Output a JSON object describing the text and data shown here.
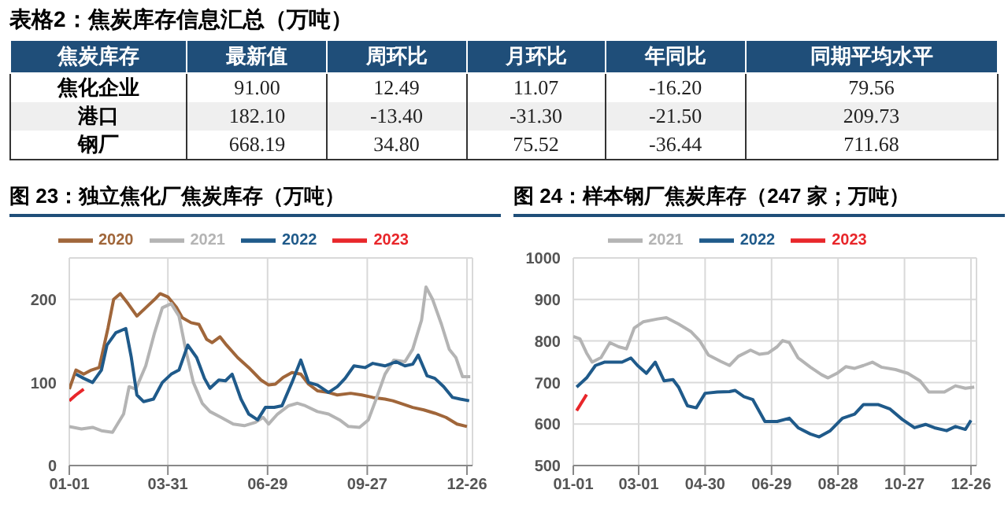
{
  "chart_data": [
    {
      "type": "heatmap",
      "title": "表格2：焦炭库存信息汇总（万吨）",
      "ylabel": "焦炭库存",
      "categories": [
        "最新值",
        "周环比",
        "月环比",
        "年同比",
        "同期平均水平"
      ],
      "y_categories": [
        "焦化企业",
        "港口",
        "钢厂"
      ],
      "cells": [
        [
          91.0,
          12.49,
          11.07,
          -16.2,
          79.56
        ],
        [
          182.1,
          -13.4,
          -31.3,
          -21.5,
          209.73
        ],
        [
          668.19,
          34.8,
          75.52,
          -36.44,
          711.68
        ]
      ],
      "cell_labels": [
        [
          "91.00",
          "12.49",
          "11.07",
          "-16.20",
          "79.56"
        ],
        [
          "182.10",
          "-13.40",
          "-31.30",
          "-21.50",
          "209.73"
        ],
        [
          "668.19",
          "34.80",
          "75.52",
          "-36.44",
          "711.68"
        ]
      ],
      "data_labels": true
    },
    {
      "type": "line",
      "title": "图 23：独立焦化厂焦炭库存（万吨）",
      "legend": "top",
      "grid": true,
      "xlim": [
        "--01-01",
        "--12-31"
      ],
      "xticks": [
        {
          "value": "--01-01",
          "label": "01-01"
        },
        {
          "value": "--03-31",
          "label": "03-31"
        },
        {
          "value": "--06-29",
          "label": "06-29"
        },
        {
          "value": "--09-27",
          "label": "09-27"
        },
        {
          "value": "--12-26",
          "label": "12-26"
        }
      ],
      "ylim": [
        0,
        250
      ],
      "yticks": [
        0,
        100,
        200
      ],
      "series": [
        {
          "name": "2020",
          "color": "#a0663a",
          "x": [
            "--01-01",
            "--01-07",
            "--01-14",
            "--01-21",
            "--01-28",
            "--02-05",
            "--02-10",
            "--02-16",
            "--02-23",
            "--03-03",
            "--03-11",
            "--03-19",
            "--03-24",
            "--03-31",
            "--04-08",
            "--04-13",
            "--04-21",
            "--04-28",
            "--05-05",
            "--05-10",
            "--05-17",
            "--05-23",
            "--06-02",
            "--06-12",
            "--06-23",
            "--06-30",
            "--07-06",
            "--07-13",
            "--07-21",
            "--07-29",
            "--08-05",
            "--08-13",
            "--08-23",
            "--08-31",
            "--09-12",
            "--09-22",
            "--10-02",
            "--10-13",
            "--10-20",
            "--10-27",
            "--11-07",
            "--11-17",
            "--11-27",
            "--12-07",
            "--12-17",
            "--12-26"
          ],
          "values": [
            92,
            115,
            110,
            115,
            118,
            166,
            200,
            207,
            195,
            180,
            190,
            200,
            207,
            203,
            190,
            178,
            172,
            170,
            152,
            148,
            155,
            145,
            130,
            118,
            103,
            97,
            98,
            106,
            112,
            110,
            98,
            90,
            88,
            85,
            87,
            85,
            82,
            80,
            78,
            75,
            70,
            67,
            63,
            58,
            50,
            47
          ]
        },
        {
          "name": "2021",
          "color": "#b4b4b4",
          "x": [
            "--01-01",
            "--01-12",
            "--01-22",
            "--01-30",
            "--02-09",
            "--02-19",
            "--02-24",
            "--03-02",
            "--03-11",
            "--03-19",
            "--03-26",
            "--04-03",
            "--04-10",
            "--04-16",
            "--04-23",
            "--05-01",
            "--05-08",
            "--05-18",
            "--05-29",
            "--06-08",
            "--06-18",
            "--06-25",
            "--06-30",
            "--07-08",
            "--07-18",
            "--07-26",
            "--08-02",
            "--08-13",
            "--08-23",
            "--09-02",
            "--09-10",
            "--09-20",
            "--09-28",
            "--10-05",
            "--10-13",
            "--10-21",
            "--10-31",
            "--11-07",
            "--11-15",
            "--11-19",
            "--11-25",
            "--12-03",
            "--12-10",
            "--12-16",
            "--12-22",
            "--12-29"
          ],
          "values": [
            47,
            44,
            46,
            42,
            40,
            62,
            95,
            92,
            120,
            160,
            190,
            195,
            180,
            140,
            100,
            75,
            65,
            58,
            50,
            48,
            52,
            58,
            50,
            62,
            72,
            75,
            72,
            65,
            62,
            55,
            47,
            46,
            55,
            80,
            110,
            127,
            125,
            140,
            175,
            215,
            200,
            170,
            140,
            130,
            107,
            107
          ]
        },
        {
          "name": "2022",
          "color": "#1f5a8a",
          "x": [
            "--01-07",
            "--01-14",
            "--01-22",
            "--01-30",
            "--02-04",
            "--02-12",
            "--02-21",
            "--02-26",
            "--03-03",
            "--03-09",
            "--03-18",
            "--03-26",
            "--04-03",
            "--04-10",
            "--04-18",
            "--04-26",
            "--05-03",
            "--05-08",
            "--05-16",
            "--05-22",
            "--05-28",
            "--06-05",
            "--06-12",
            "--06-20",
            "--06-27",
            "--07-05",
            "--07-12",
            "--07-21",
            "--07-29",
            "--08-05",
            "--08-13",
            "--08-23",
            "--08-31",
            "--09-07",
            "--09-15",
            "--09-25",
            "--10-02",
            "--10-13",
            "--10-23",
            "--10-31",
            "--11-07",
            "--11-12",
            "--11-20",
            "--11-27",
            "--12-05",
            "--12-13",
            "--12-20",
            "--12-28"
          ],
          "values": [
            110,
            105,
            100,
            115,
            145,
            160,
            165,
            130,
            85,
            77,
            80,
            100,
            110,
            115,
            145,
            130,
            105,
            93,
            103,
            102,
            110,
            80,
            62,
            55,
            70,
            70,
            72,
            100,
            127,
            100,
            97,
            88,
            95,
            105,
            120,
            118,
            123,
            120,
            125,
            120,
            122,
            133,
            108,
            105,
            95,
            82,
            80,
            78
          ]
        },
        {
          "name": "2023",
          "color": "#e8262a",
          "x": [
            "--01-01",
            "--01-07",
            "--01-14"
          ],
          "values": [
            78,
            85,
            92
          ]
        }
      ]
    },
    {
      "type": "line",
      "title": "图 24：样本钢厂焦炭库存（247 家；万吨）",
      "legend": "top",
      "grid": true,
      "xlim": [
        "--01-01",
        "--12-31"
      ],
      "xticks": [
        {
          "value": "--01-01",
          "label": "01-01"
        },
        {
          "value": "--03-01",
          "label": "03-01"
        },
        {
          "value": "--04-30",
          "label": "04-30"
        },
        {
          "value": "--06-29",
          "label": "06-29"
        },
        {
          "value": "--08-28",
          "label": "08-28"
        },
        {
          "value": "--10-27",
          "label": "10-27"
        },
        {
          "value": "--12-26",
          "label": "12-26"
        }
      ],
      "ylim": [
        500,
        1000
      ],
      "yticks": [
        500,
        600,
        700,
        800,
        900,
        1000
      ],
      "series": [
        {
          "name": "2021",
          "color": "#b4b4b4",
          "x": [
            "--01-01",
            "--01-07",
            "--01-13",
            "--01-18",
            "--01-26",
            "--02-03",
            "--02-11",
            "--02-18",
            "--02-25",
            "--03-05",
            "--03-18",
            "--03-26",
            "--04-06",
            "--04-17",
            "--04-25",
            "--05-03",
            "--05-14",
            "--05-22",
            "--05-30",
            "--06-10",
            "--06-18",
            "--06-26",
            "--07-04",
            "--07-09",
            "--07-15",
            "--07-23",
            "--08-03",
            "--08-13",
            "--08-19",
            "--08-27",
            "--09-04",
            "--09-12",
            "--09-20",
            "--09-28",
            "--10-06",
            "--10-19",
            "--10-30",
            "--11-10",
            "--11-18",
            "--12-02",
            "--12-12",
            "--12-21",
            "--12-29"
          ],
          "values": [
            811,
            805,
            771,
            749,
            760,
            796,
            786,
            781,
            831,
            846,
            853,
            856,
            841,
            823,
            801,
            766,
            751,
            741,
            763,
            778,
            768,
            771,
            786,
            801,
            796,
            759,
            737,
            719,
            711,
            722,
            738,
            734,
            741,
            749,
            737,
            731,
            722,
            704,
            677,
            677,
            692,
            686,
            689
          ]
        },
        {
          "name": "2022",
          "color": "#1f5a8a",
          "x": [
            "--01-04",
            "--01-13",
            "--01-21",
            "--01-29",
            "--02-06",
            "--02-14",
            "--02-22",
            "--02-28",
            "--03-08",
            "--03-16",
            "--03-24",
            "--04-01",
            "--04-06",
            "--04-14",
            "--04-22",
            "--04-30",
            "--05-11",
            "--05-22",
            "--05-27",
            "--06-04",
            "--06-12",
            "--06-23",
            "--07-04",
            "--07-15",
            "--07-23",
            "--08-03",
            "--08-11",
            "--08-21",
            "--09-01",
            "--09-12",
            "--09-20",
            "--10-03",
            "--10-14",
            "--10-25",
            "--11-05",
            "--11-15",
            "--11-23",
            "--12-04",
            "--12-12",
            "--12-21",
            "--12-26"
          ],
          "values": [
            689,
            711,
            741,
            749,
            749,
            749,
            759,
            741,
            722,
            749,
            704,
            707,
            689,
            644,
            639,
            674,
            677,
            678,
            681,
            666,
            659,
            606,
            606,
            614,
            591,
            576,
            569,
            584,
            614,
            624,
            647,
            647,
            636,
            611,
            591,
            599,
            591,
            584,
            594,
            587,
            609
          ]
        },
        {
          "name": "2023",
          "color": "#e8262a",
          "x": [
            "--01-04",
            "--01-13"
          ],
          "values": [
            632,
            671
          ]
        }
      ]
    }
  ]
}
